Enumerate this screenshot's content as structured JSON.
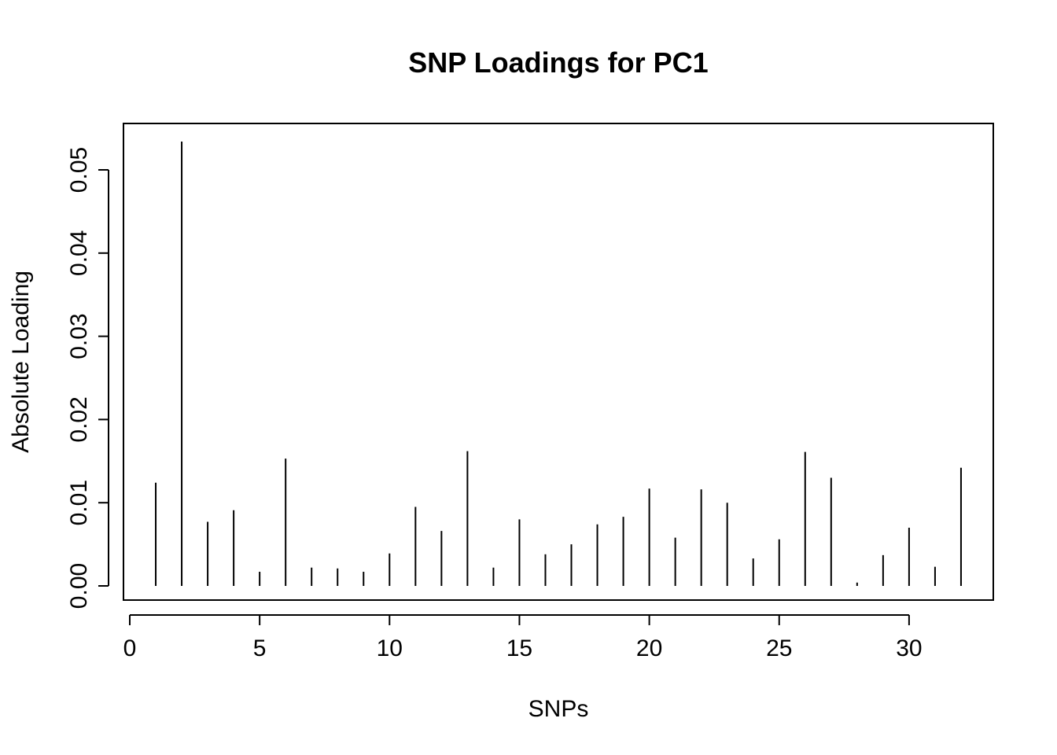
{
  "chart_data": {
    "type": "bar",
    "style": "histogram-spikes",
    "title": "SNP Loadings for PC1",
    "xlabel": "SNPs",
    "ylabel": "Absolute Loading",
    "x": [
      1,
      2,
      3,
      4,
      5,
      6,
      7,
      8,
      9,
      10,
      11,
      12,
      13,
      14,
      15,
      16,
      17,
      18,
      19,
      20,
      21,
      22,
      23,
      24,
      25,
      26,
      27,
      28,
      29,
      30,
      31,
      32
    ],
    "values": [
      0.0124,
      0.0534,
      0.0077,
      0.0091,
      0.0017,
      0.0153,
      0.0022,
      0.0021,
      0.0017,
      0.0039,
      0.0095,
      0.0066,
      0.0162,
      0.0022,
      0.008,
      0.0038,
      0.005,
      0.0074,
      0.0083,
      0.0117,
      0.0058,
      0.0116,
      0.01,
      0.0033,
      0.0056,
      0.0161,
      0.013,
      0.0004,
      0.0037,
      0.007,
      0.0023,
      0.0142
    ],
    "xticks": [
      0,
      5,
      10,
      15,
      20,
      25,
      30
    ],
    "xtick_labels": [
      "0",
      "5",
      "10",
      "15",
      "20",
      "25",
      "30"
    ],
    "yticks": [
      0,
      0.01,
      0.02,
      0.03,
      0.04,
      0.05
    ],
    "ytick_labels": [
      "0.00",
      "0.01",
      "0.02",
      "0.03",
      "0.04",
      "0.05"
    ],
    "xlim": [
      0,
      32
    ],
    "ylim": [
      0,
      0.0534
    ],
    "grid": false,
    "bar_color": "#000000"
  }
}
